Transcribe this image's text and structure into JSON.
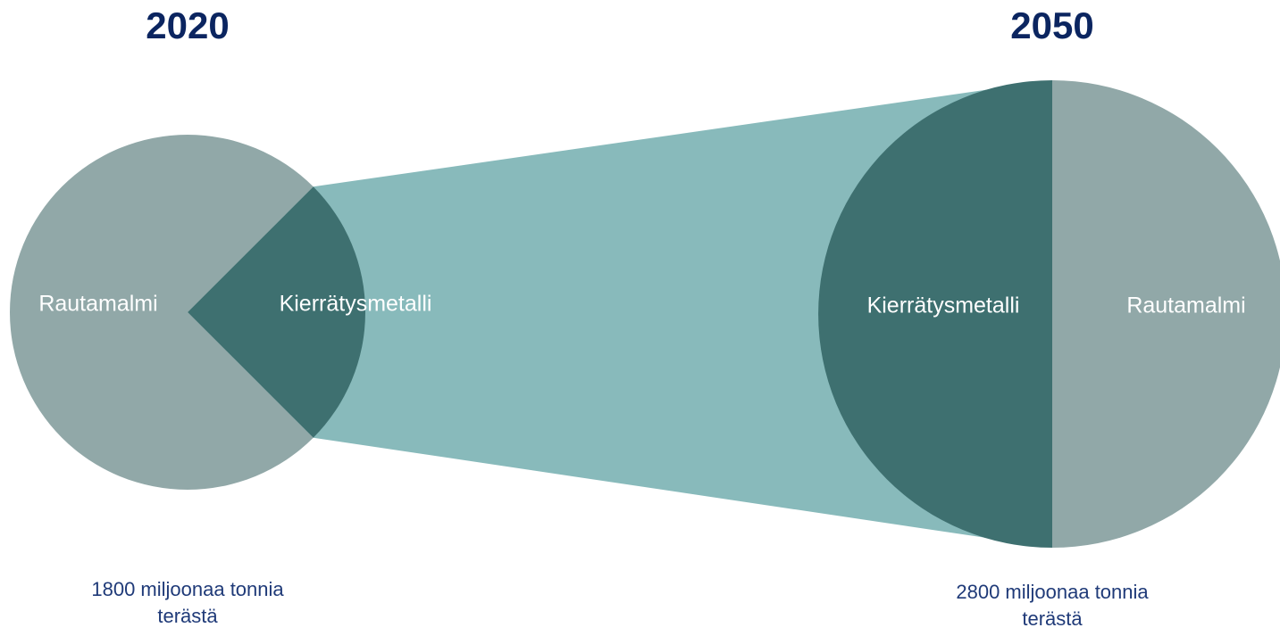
{
  "chart_data": [
    {
      "type": "pie",
      "title": "2020",
      "categories": [
        "Rautamalmi",
        "Kierrätysmetalli"
      ],
      "values": [
        75,
        25
      ],
      "colors": [
        "#91a8a8",
        "#3e7070"
      ],
      "caption": [
        "1800 miljoonaa tonnia",
        "terästä"
      ]
    },
    {
      "type": "pie",
      "title": "2050",
      "categories": [
        "Rautamalmi",
        "Kierrätysmetalli"
      ],
      "values": [
        50,
        50
      ],
      "colors": [
        "#91a8a8",
        "#3e7070"
      ],
      "caption": [
        "2800 miljoonaa tonnia",
        "terästä"
      ]
    }
  ]
}
